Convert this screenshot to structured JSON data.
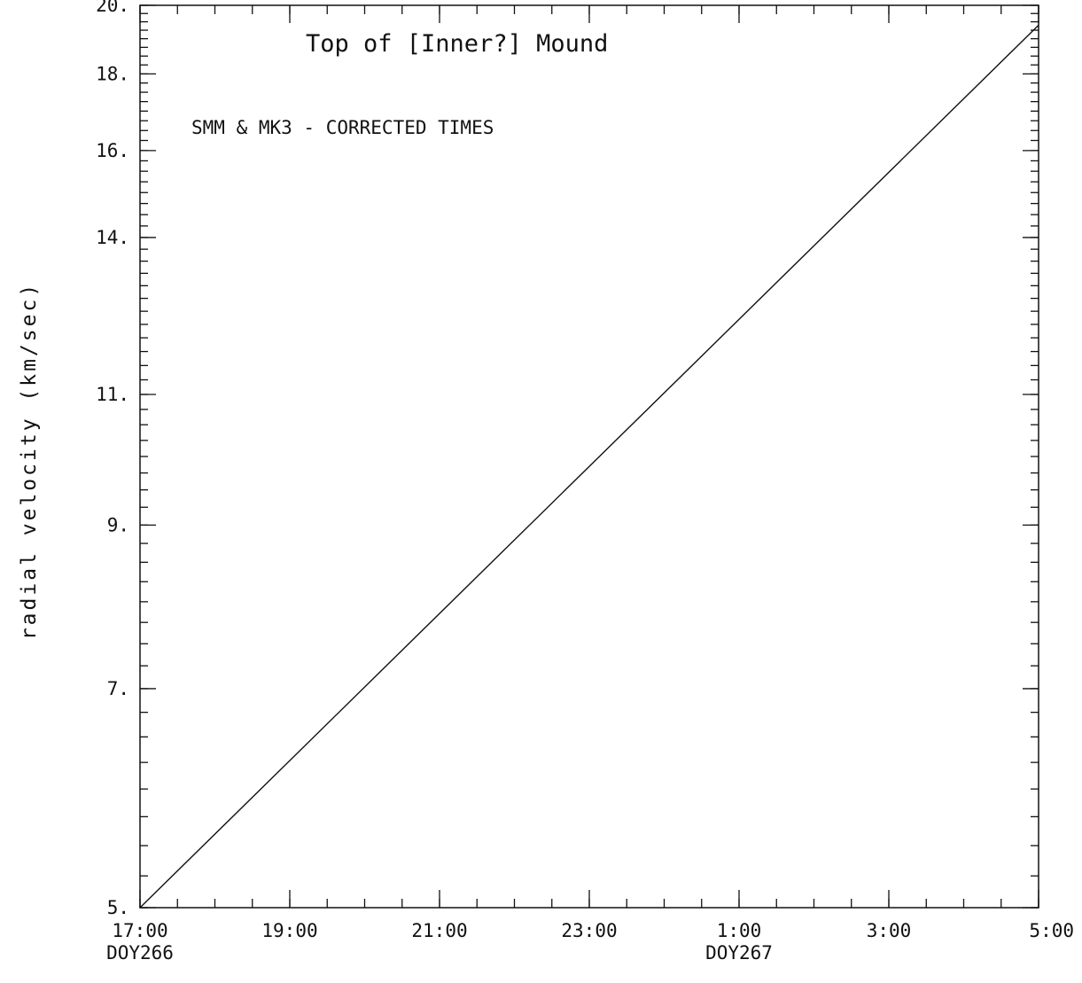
{
  "chart_data": {
    "type": "line",
    "title": "Top of [Inner?] Mound",
    "annotation": "SMM & MK3 - CORRECTED TIMES",
    "ylabel": "radial velocity (km/sec)",
    "xlabel": "",
    "xlim": [
      "DOY266 17:00",
      "DOY267 05:00"
    ],
    "ylim": [
      5,
      20
    ],
    "y_scale": "log",
    "grid": false,
    "y_ticks": [
      {
        "value": 5,
        "label": "5."
      },
      {
        "value": 7,
        "label": "7."
      },
      {
        "value": 9,
        "label": "9."
      },
      {
        "value": 11,
        "label": "11."
      },
      {
        "value": 14,
        "label": "14."
      },
      {
        "value": 16,
        "label": "16."
      },
      {
        "value": 18,
        "label": "18."
      },
      {
        "value": 20,
        "label": "20."
      }
    ],
    "x_ticks": [
      {
        "value": "DOY266 17:00",
        "label": "17:00",
        "sublabel": "DOY266"
      },
      {
        "value": "DOY266 19:00",
        "label": "19:00",
        "sublabel": ""
      },
      {
        "value": "DOY266 21:00",
        "label": "21:00",
        "sublabel": ""
      },
      {
        "value": "DOY266 23:00",
        "label": "23:00",
        "sublabel": ""
      },
      {
        "value": "DOY267 01:00",
        "label": "1:00",
        "sublabel": "DOY267"
      },
      {
        "value": "DOY267 03:00",
        "label": "3:00",
        "sublabel": ""
      },
      {
        "value": "DOY267 05:00",
        "label": "5:00",
        "sublabel": ""
      }
    ],
    "series": [
      {
        "x": [
          "DOY266 17:00",
          "DOY267 05:00"
        ],
        "y": [
          5.0,
          19.4
        ]
      }
    ]
  }
}
